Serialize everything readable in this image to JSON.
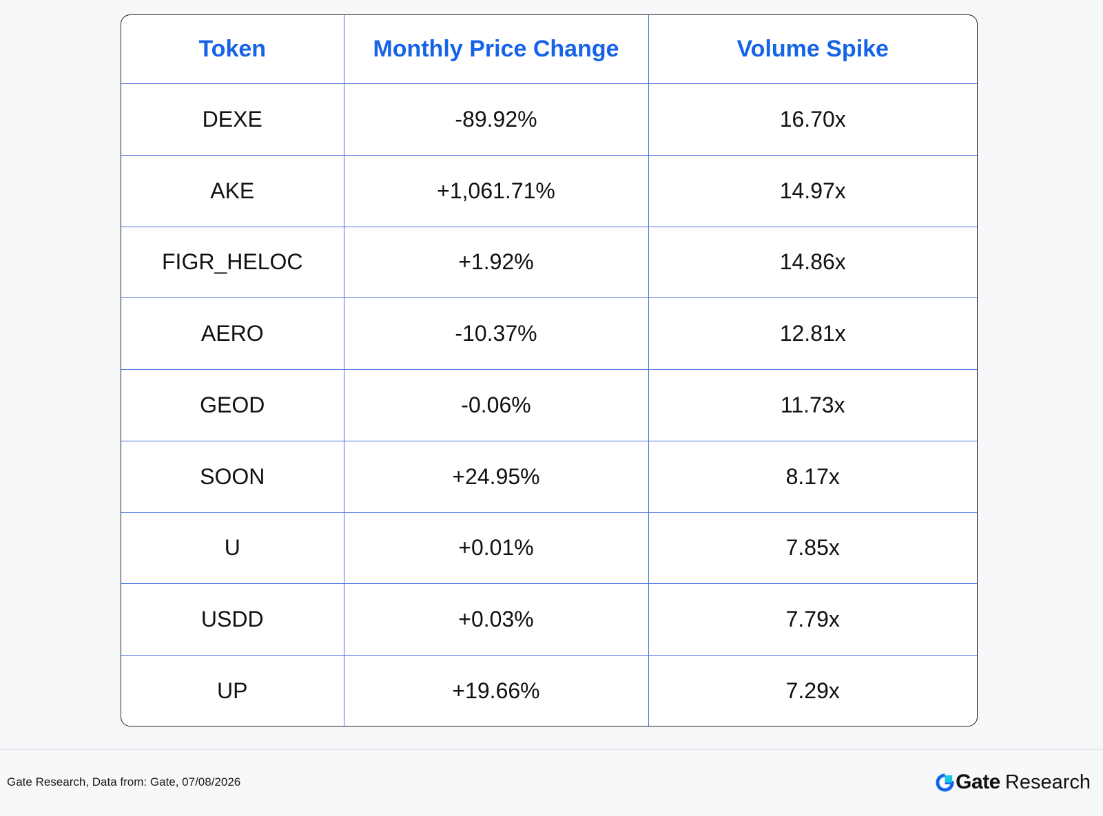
{
  "chart_data": {
    "type": "table",
    "columns": [
      "Token",
      "Monthly Price Change",
      "Volume Spike"
    ],
    "rows": [
      [
        "DEXE",
        "-89.92%",
        "16.70x"
      ],
      [
        "AKE",
        "+1,061.71%",
        "14.97x"
      ],
      [
        "FIGR_HELOC",
        "+1.92%",
        "14.86x"
      ],
      [
        "AERO",
        "-10.37%",
        "12.81x"
      ],
      [
        "GEOD",
        "-0.06%",
        "11.73x"
      ],
      [
        "SOON",
        "+24.95%",
        "8.17x"
      ],
      [
        "U",
        "+0.01%",
        "7.85x"
      ],
      [
        "USDD",
        "+0.03%",
        "7.79x"
      ],
      [
        "UP",
        "+19.66%",
        "7.29x"
      ]
    ]
  },
  "footer": {
    "source": "Gate Research, Data from: Gate, 07/08/2026",
    "brand_name": "Gate",
    "brand_suffix": "Research",
    "brand_icon": "gate-logo-icon"
  },
  "colors": {
    "header_text": "#1463e8",
    "grid_line": "#4a6fe0",
    "background": "#f7f8fa",
    "brand_blue": "#1463e8",
    "brand_cyan": "#17c7e0"
  }
}
